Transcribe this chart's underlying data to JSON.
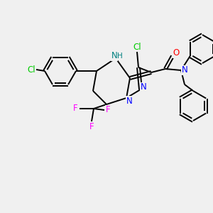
{
  "background_color": "#f0f0f0",
  "bond_color": "#000000",
  "atom_colors": {
    "Cl": "#00cc00",
    "N": "#0000ff",
    "O": "#ff0000",
    "F": "#ff00ff",
    "NH": "#008080",
    "C": "#000000"
  },
  "figsize": [
    3.0,
    3.0
  ],
  "dpi": 100,
  "bond_lw": 1.4,
  "font_size": 8.5
}
